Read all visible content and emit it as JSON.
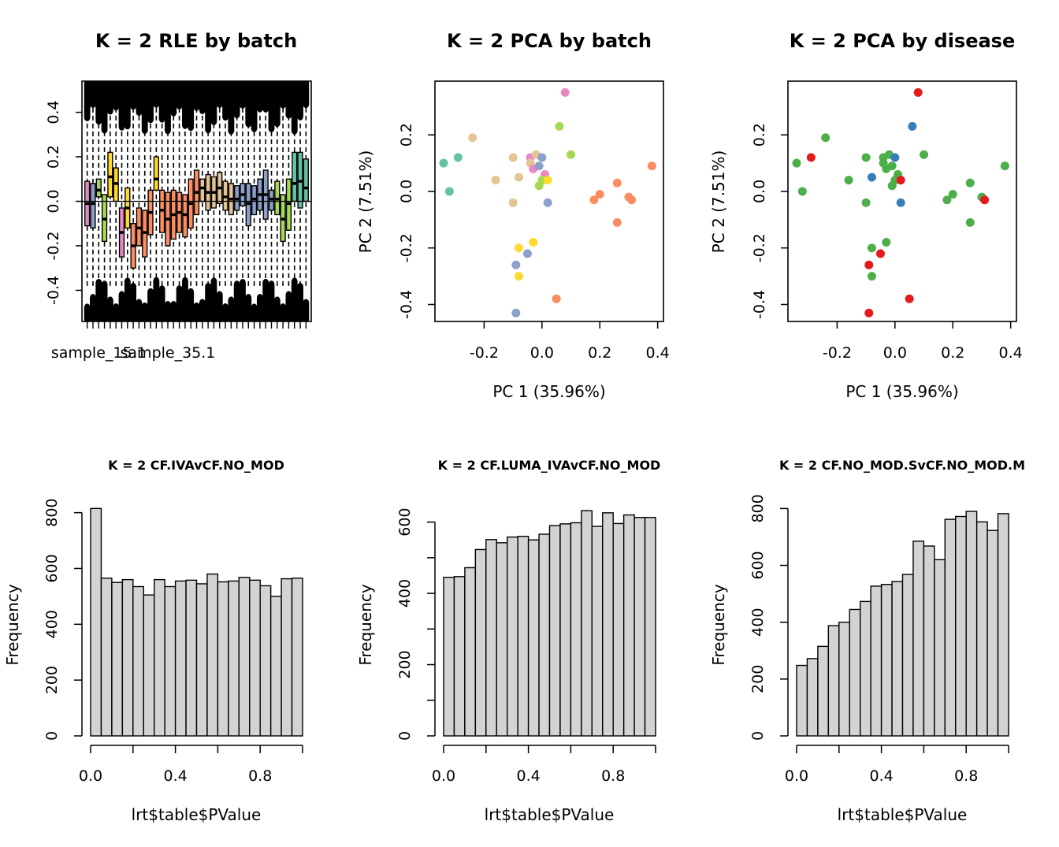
{
  "chart_data": [
    {
      "type": "box",
      "title": "K = 2 RLE by batch",
      "xlabel": "",
      "ylabel": "",
      "ylim": [
        -0.54,
        0.54
      ],
      "yticks": [
        -0.4,
        -0.2,
        0.0,
        0.2,
        0.4
      ],
      "ytick_labels": [
        "-0.4",
        "-0.2",
        "0.0",
        "0.2",
        "0.4"
      ],
      "xtick_labels": [
        "sample_15.1",
        "sample_35.1"
      ],
      "reference_line": 0,
      "boxes": [
        {
          "q1": -0.11,
          "median": -0.01,
          "q3": 0.09,
          "color": "#e78ac3"
        },
        {
          "q1": -0.12,
          "median": -0.01,
          "q3": 0.08,
          "color": "#8da0cb"
        },
        {
          "q1": 0.02,
          "median": 0.05,
          "q3": 0.1,
          "color": "#a6d854"
        },
        {
          "q1": -0.18,
          "median": -0.08,
          "q3": 0.03,
          "color": "#a6d854"
        },
        {
          "q1": 0.02,
          "median": 0.11,
          "q3": 0.22,
          "color": "#ffd92f"
        },
        {
          "q1": 0.0,
          "median": 0.08,
          "q3": 0.15,
          "color": "#ffd92f"
        },
        {
          "q1": -0.25,
          "median": -0.14,
          "q3": -0.03,
          "color": "#e78ac3"
        },
        {
          "q1": -0.12,
          "median": -0.03,
          "q3": 0.06,
          "color": "#ffd92f"
        },
        {
          "q1": -0.3,
          "median": -0.2,
          "q3": -0.1,
          "color": "#fc8d62"
        },
        {
          "q1": -0.2,
          "median": -0.12,
          "q3": -0.03,
          "color": "#fc8d62"
        },
        {
          "q1": -0.25,
          "median": -0.14,
          "q3": -0.04,
          "color": "#fc8d62"
        },
        {
          "q1": -0.15,
          "median": -0.05,
          "q3": 0.05,
          "color": "#fc8d62"
        },
        {
          "q1": 0.05,
          "median": 0.1,
          "q3": 0.2,
          "color": "#ffd92f"
        },
        {
          "q1": -0.14,
          "median": -0.04,
          "q3": 0.05,
          "color": "#fc8d62"
        },
        {
          "q1": -0.2,
          "median": -0.08,
          "q3": 0.04,
          "color": "#fc8d62"
        },
        {
          "q1": -0.17,
          "median": -0.06,
          "q3": 0.05,
          "color": "#fc8d62"
        },
        {
          "q1": -0.14,
          "median": -0.05,
          "q3": 0.04,
          "color": "#fc8d62"
        },
        {
          "q1": -0.16,
          "median": -0.06,
          "q3": 0.03,
          "color": "#fc8d62"
        },
        {
          "q1": -0.12,
          "median": -0.01,
          "q3": 0.1,
          "color": "#fc8d62"
        },
        {
          "q1": -0.06,
          "median": 0.04,
          "q3": 0.14,
          "color": "#fc8d62"
        },
        {
          "q1": 0.0,
          "median": 0.06,
          "q3": 0.1,
          "color": "#e5c494"
        },
        {
          "q1": -0.04,
          "median": 0.04,
          "q3": 0.12,
          "color": "#e5c494"
        },
        {
          "q1": -0.03,
          "median": 0.04,
          "q3": 0.11,
          "color": "#e5c494"
        },
        {
          "q1": -0.01,
          "median": 0.06,
          "q3": 0.13,
          "color": "#e5c494"
        },
        {
          "q1": -0.04,
          "median": 0.02,
          "q3": 0.09,
          "color": "#e5c494"
        },
        {
          "q1": -0.06,
          "median": 0.01,
          "q3": 0.08,
          "color": "#e5c494"
        },
        {
          "q1": -0.04,
          "median": 0.01,
          "q3": 0.07,
          "color": "#8da0cb"
        },
        {
          "q1": -0.02,
          "median": 0.03,
          "q3": 0.08,
          "color": "#8da0cb"
        },
        {
          "q1": -0.11,
          "median": -0.01,
          "q3": 0.08,
          "color": "#8da0cb"
        },
        {
          "q1": -0.06,
          "median": 0.01,
          "q3": 0.07,
          "color": "#8da0cb"
        },
        {
          "q1": -0.04,
          "median": 0.03,
          "q3": 0.1,
          "color": "#8da0cb"
        },
        {
          "q1": -0.08,
          "median": 0.03,
          "q3": 0.14,
          "color": "#8da0cb"
        },
        {
          "q1": -0.04,
          "median": 0.01,
          "q3": 0.05,
          "color": "#8da0cb"
        },
        {
          "q1": -0.06,
          "median": 0.01,
          "q3": 0.09,
          "color": "#a6d854"
        },
        {
          "q1": -0.18,
          "median": -0.08,
          "q3": 0.03,
          "color": "#a6d854"
        },
        {
          "q1": -0.13,
          "median": -0.01,
          "q3": 0.1,
          "color": "#a6d854"
        },
        {
          "q1": 0.0,
          "median": 0.08,
          "q3": 0.22,
          "color": "#66c2a5"
        },
        {
          "q1": -0.03,
          "median": 0.09,
          "q3": 0.22,
          "color": "#66c2a5"
        },
        {
          "q1": 0.0,
          "median": 0.06,
          "q3": 0.19,
          "color": "#66c2a5"
        }
      ]
    },
    {
      "type": "scatter",
      "title": "K = 2 PCA by batch",
      "xlabel": "PC 1 (35.96%)",
      "ylabel": "PC 2 (7.51%)",
      "xlim": [
        -0.37,
        0.42
      ],
      "ylim": [
        -0.46,
        0.39
      ],
      "xticks": [
        -0.2,
        0.0,
        0.2,
        0.4
      ],
      "xtick_labels": [
        "-0.2",
        "0.0",
        "0.2",
        "0.4"
      ],
      "yticks": [
        -0.4,
        -0.2,
        0.0,
        0.2
      ],
      "ytick_labels": [
        "-0.4",
        "-0.2",
        "0.0",
        "0.2"
      ],
      "points": [
        {
          "x": -0.34,
          "y": 0.1,
          "color": "#66c2a5"
        },
        {
          "x": -0.32,
          "y": 0.0,
          "color": "#66c2a5"
        },
        {
          "x": -0.29,
          "y": 0.12,
          "color": "#66c2a5"
        },
        {
          "x": -0.24,
          "y": 0.19,
          "color": "#e5c494"
        },
        {
          "x": -0.16,
          "y": 0.04,
          "color": "#e5c494"
        },
        {
          "x": -0.1,
          "y": 0.12,
          "color": "#e5c494"
        },
        {
          "x": -0.1,
          "y": -0.04,
          "color": "#e5c494"
        },
        {
          "x": -0.08,
          "y": 0.05,
          "color": "#e5c494"
        },
        {
          "x": -0.04,
          "y": 0.12,
          "color": "#e78ac3"
        },
        {
          "x": -0.04,
          "y": 0.1,
          "color": "#e5c494"
        },
        {
          "x": -0.03,
          "y": 0.08,
          "color": "#e78ac3"
        },
        {
          "x": -0.02,
          "y": 0.13,
          "color": "#e5c494"
        },
        {
          "x": -0.01,
          "y": 0.09,
          "color": "#8da0cb"
        },
        {
          "x": 0.0,
          "y": 0.12,
          "color": "#8da0cb"
        },
        {
          "x": 0.01,
          "y": 0.06,
          "color": "#e78ac3"
        },
        {
          "x": 0.0,
          "y": 0.04,
          "color": "#a6d854"
        },
        {
          "x": -0.01,
          "y": 0.02,
          "color": "#a6d854"
        },
        {
          "x": 0.02,
          "y": 0.04,
          "color": "#ffd92f"
        },
        {
          "x": 0.02,
          "y": -0.04,
          "color": "#8da0cb"
        },
        {
          "x": 0.06,
          "y": 0.23,
          "color": "#a6d854"
        },
        {
          "x": 0.1,
          "y": 0.13,
          "color": "#a6d854"
        },
        {
          "x": 0.08,
          "y": 0.35,
          "color": "#e78ac3"
        },
        {
          "x": -0.03,
          "y": -0.18,
          "color": "#ffd92f"
        },
        {
          "x": -0.08,
          "y": -0.2,
          "color": "#ffd92f"
        },
        {
          "x": -0.05,
          "y": -0.22,
          "color": "#8da0cb"
        },
        {
          "x": -0.09,
          "y": -0.26,
          "color": "#8da0cb"
        },
        {
          "x": -0.08,
          "y": -0.3,
          "color": "#ffd92f"
        },
        {
          "x": -0.09,
          "y": -0.43,
          "color": "#8da0cb"
        },
        {
          "x": 0.05,
          "y": -0.38,
          "color": "#fc8d62"
        },
        {
          "x": 0.18,
          "y": -0.03,
          "color": "#fc8d62"
        },
        {
          "x": 0.2,
          "y": -0.01,
          "color": "#fc8d62"
        },
        {
          "x": 0.26,
          "y": 0.03,
          "color": "#fc8d62"
        },
        {
          "x": 0.26,
          "y": -0.11,
          "color": "#fc8d62"
        },
        {
          "x": 0.3,
          "y": -0.02,
          "color": "#fc8d62"
        },
        {
          "x": 0.31,
          "y": -0.03,
          "color": "#fc8d62"
        },
        {
          "x": 0.38,
          "y": 0.09,
          "color": "#fc8d62"
        }
      ]
    },
    {
      "type": "scatter",
      "title": "K = 2 PCA by disease",
      "xlabel": "PC 1 (35.96%)",
      "ylabel": "PC 2 (7.51%)",
      "xlim": [
        -0.37,
        0.42
      ],
      "ylim": [
        -0.46,
        0.39
      ],
      "xticks": [
        -0.2,
        0.0,
        0.2,
        0.4
      ],
      "xtick_labels": [
        "-0.2",
        "0.0",
        "0.2",
        "0.4"
      ],
      "yticks": [
        -0.4,
        -0.2,
        0.0,
        0.2
      ],
      "ytick_labels": [
        "-0.4",
        "-0.2",
        "0.0",
        "0.2"
      ],
      "points": [
        {
          "x": -0.34,
          "y": 0.1,
          "color": "#4daf4a"
        },
        {
          "x": -0.32,
          "y": 0.0,
          "color": "#4daf4a"
        },
        {
          "x": -0.29,
          "y": 0.12,
          "color": "#e41a1c"
        },
        {
          "x": -0.24,
          "y": 0.19,
          "color": "#4daf4a"
        },
        {
          "x": -0.16,
          "y": 0.04,
          "color": "#4daf4a"
        },
        {
          "x": -0.1,
          "y": 0.12,
          "color": "#4daf4a"
        },
        {
          "x": -0.1,
          "y": -0.04,
          "color": "#4daf4a"
        },
        {
          "x": -0.08,
          "y": 0.05,
          "color": "#377eb8"
        },
        {
          "x": -0.04,
          "y": 0.12,
          "color": "#4daf4a"
        },
        {
          "x": -0.04,
          "y": 0.1,
          "color": "#4daf4a"
        },
        {
          "x": -0.03,
          "y": 0.08,
          "color": "#4daf4a"
        },
        {
          "x": -0.02,
          "y": 0.13,
          "color": "#4daf4a"
        },
        {
          "x": -0.01,
          "y": 0.09,
          "color": "#4daf4a"
        },
        {
          "x": 0.0,
          "y": 0.12,
          "color": "#377eb8"
        },
        {
          "x": 0.01,
          "y": 0.06,
          "color": "#4daf4a"
        },
        {
          "x": 0.0,
          "y": 0.04,
          "color": "#4daf4a"
        },
        {
          "x": -0.01,
          "y": 0.02,
          "color": "#4daf4a"
        },
        {
          "x": 0.02,
          "y": 0.04,
          "color": "#e41a1c"
        },
        {
          "x": 0.02,
          "y": -0.04,
          "color": "#377eb8"
        },
        {
          "x": 0.06,
          "y": 0.23,
          "color": "#377eb8"
        },
        {
          "x": 0.1,
          "y": 0.13,
          "color": "#4daf4a"
        },
        {
          "x": 0.08,
          "y": 0.35,
          "color": "#e41a1c"
        },
        {
          "x": -0.03,
          "y": -0.18,
          "color": "#4daf4a"
        },
        {
          "x": -0.08,
          "y": -0.2,
          "color": "#4daf4a"
        },
        {
          "x": -0.05,
          "y": -0.22,
          "color": "#e41a1c"
        },
        {
          "x": -0.09,
          "y": -0.26,
          "color": "#e41a1c"
        },
        {
          "x": -0.08,
          "y": -0.3,
          "color": "#4daf4a"
        },
        {
          "x": -0.09,
          "y": -0.43,
          "color": "#e41a1c"
        },
        {
          "x": 0.05,
          "y": -0.38,
          "color": "#e41a1c"
        },
        {
          "x": 0.18,
          "y": -0.03,
          "color": "#4daf4a"
        },
        {
          "x": 0.2,
          "y": -0.01,
          "color": "#4daf4a"
        },
        {
          "x": 0.26,
          "y": 0.03,
          "color": "#4daf4a"
        },
        {
          "x": 0.26,
          "y": -0.11,
          "color": "#4daf4a"
        },
        {
          "x": 0.3,
          "y": -0.02,
          "color": "#4daf4a"
        },
        {
          "x": 0.31,
          "y": -0.03,
          "color": "#e41a1c"
        },
        {
          "x": 0.38,
          "y": 0.09,
          "color": "#4daf4a"
        }
      ]
    },
    {
      "type": "histogram",
      "title": "K = 2 CF.IVAvCF.NO_MOD",
      "xlabel": "lrt$table$PValue",
      "ylabel": "Frequency",
      "bin_width": 0.05,
      "xlim": [
        0,
        1
      ],
      "ylim": [
        0,
        830
      ],
      "xticks": [
        0.0,
        0.2,
        0.4,
        0.6,
        0.8,
        1.0
      ],
      "xtick_labels": [
        "0.0",
        "0.4",
        "0.8"
      ],
      "xtick_label_values": [
        0.0,
        0.4,
        0.8
      ],
      "yticks": [
        0,
        200,
        400,
        600,
        800
      ],
      "ytick_labels": [
        "0",
        "200",
        "400",
        "600",
        "800"
      ],
      "counts": [
        815,
        565,
        550,
        560,
        535,
        505,
        560,
        535,
        555,
        558,
        545,
        580,
        552,
        555,
        568,
        558,
        538,
        500,
        563,
        565
      ]
    },
    {
      "type": "histogram",
      "title": "K = 2 CF.LUMA_IVAvCF.NO_MOD",
      "xlabel": "lrt$table$PValue",
      "ylabel": "Frequency",
      "bin_width": 0.05,
      "xlim": [
        0,
        1
      ],
      "ylim": [
        0,
        650
      ],
      "xticks": [
        0.0,
        0.2,
        0.4,
        0.6,
        0.8,
        1.0
      ],
      "xtick_labels": [
        "0.0",
        "0.4",
        "0.8"
      ],
      "xtick_label_values": [
        0.0,
        0.4,
        0.8
      ],
      "yticks": [
        0,
        100,
        200,
        300,
        400,
        500,
        600
      ],
      "ytick_labels": [
        "0",
        "200",
        "400",
        "600"
      ],
      "ytick_label_values": [
        0,
        200,
        400,
        600
      ],
      "counts": [
        445,
        447,
        472,
        523,
        551,
        542,
        558,
        560,
        550,
        566,
        590,
        595,
        598,
        632,
        588,
        626,
        596,
        620,
        613,
        613
      ]
    },
    {
      "type": "histogram",
      "title": "K = 2 CF.NO_MOD.SvCF.NO_MOD.M",
      "xlabel": "lrt$table$PValue",
      "ylabel": "Frequency",
      "bin_width": 0.05,
      "xlim": [
        0,
        1
      ],
      "ylim": [
        0,
        815
      ],
      "xticks": [
        0.0,
        0.2,
        0.4,
        0.6,
        0.8,
        1.0
      ],
      "xtick_labels": [
        "0.0",
        "0.4",
        "0.8"
      ],
      "xtick_label_values": [
        0.0,
        0.4,
        0.8
      ],
      "yticks": [
        0,
        200,
        400,
        600,
        800
      ],
      "ytick_labels": [
        "0",
        "200",
        "400",
        "600",
        "800"
      ],
      "counts": [
        248,
        272,
        315,
        388,
        400,
        445,
        473,
        527,
        533,
        543,
        568,
        685,
        668,
        620,
        762,
        772,
        790,
        753,
        723,
        782
      ]
    }
  ]
}
